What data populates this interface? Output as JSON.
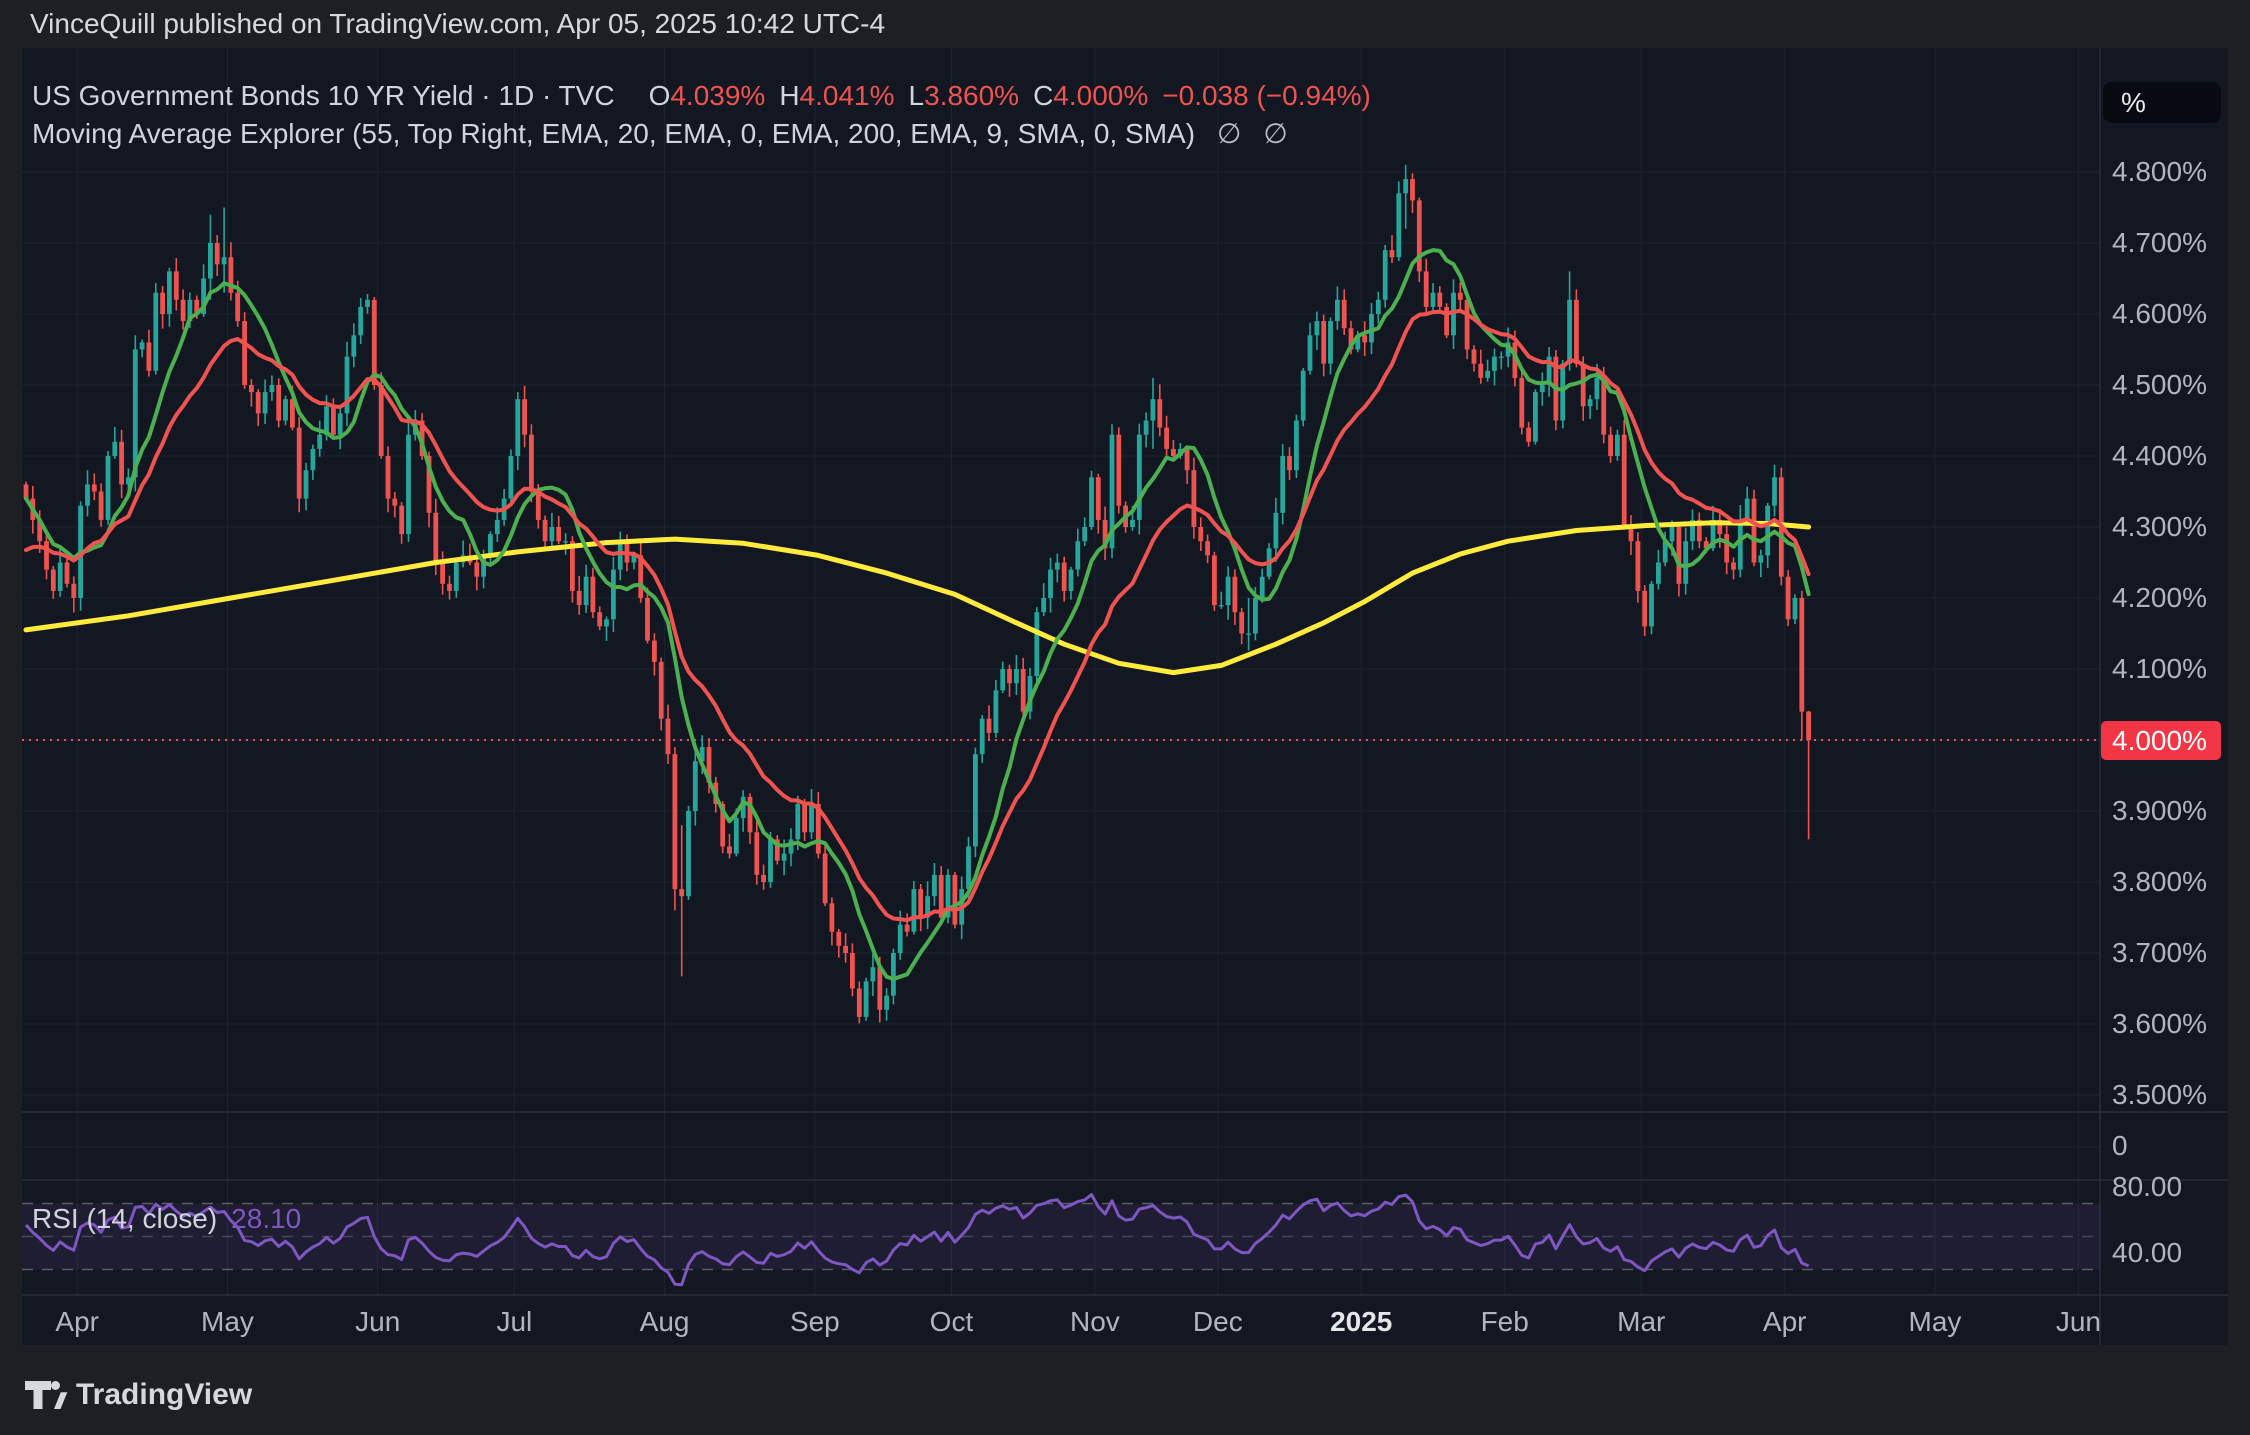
{
  "header": {
    "text": "VinceQuill published on TradingView.com, Apr 05, 2025 10:42 UTC-4"
  },
  "legend": {
    "symbol": "US Government Bonds 10 YR Yield · 1D · TVC",
    "ohlc": [
      {
        "k": "O",
        "v": "4.039%"
      },
      {
        "k": "H",
        "v": "4.041%"
      },
      {
        "k": "L",
        "v": "3.860%"
      },
      {
        "k": "C",
        "v": "4.000%"
      }
    ],
    "change": "−0.038 (−0.94%)",
    "indicator_text": "Moving Average Explorer (55, Top Right, EMA, 20, EMA, 0, EMA, 200, EMA, 9, SMA, 0, SMA)",
    "indicator_values": [
      "∅",
      "∅"
    ],
    "rsi_label": "RSI (14, close)",
    "rsi_value": "28.10"
  },
  "price_axis": {
    "unit_button": "%",
    "last_price_badge": {
      "text": "4.000%",
      "value": 4.0
    },
    "pane2_label": "0",
    "rsi_ticks": [
      {
        "label": "80.00",
        "value": 80
      },
      {
        "label": "40.00",
        "value": 40
      }
    ]
  },
  "footer": {
    "brand": "TradingView"
  },
  "colors": {
    "outer_bg": "#1e1f23",
    "chart_bg": "#131722",
    "grid": "#1d2331",
    "separator": "#2a2e39",
    "axis_text": "#b2b5be",
    "up": "#26a69a",
    "down": "#ef5350",
    "sma9": "#4caf50",
    "ema20": "#ef5350",
    "ema200": "#ffeb3b",
    "rsi_line": "#7e57c2",
    "rsi_band": "rgba(126,87,194,0.10)",
    "rsi_dash": "#9598a1",
    "badge_bg": "#f23645",
    "dotted_price_line": "#ef5350"
  },
  "chart_data": {
    "type": "candlestick",
    "title": "US Government Bonds 10 YR Yield, 1D, TVC",
    "x_unit": "daily bars, late Mar 2024 through Apr 04 2025",
    "ylabel": "yield %",
    "ylim": [
      3.476,
      4.965
    ],
    "grid": true,
    "y_ticks": [
      {
        "label": "4.800%",
        "value": 4.8
      },
      {
        "label": "4.700%",
        "value": 4.7
      },
      {
        "label": "4.600%",
        "value": 4.6
      },
      {
        "label": "4.500%",
        "value": 4.5
      },
      {
        "label": "4.400%",
        "value": 4.4
      },
      {
        "label": "4.300%",
        "value": 4.3
      },
      {
        "label": "4.200%",
        "value": 4.2
      },
      {
        "label": "4.100%",
        "value": 4.1
      },
      {
        "label": "4.000%",
        "value": 4.0
      },
      {
        "label": "3.900%",
        "value": 3.9
      },
      {
        "label": "3.800%",
        "value": 3.8
      },
      {
        "label": "3.700%",
        "value": 3.7
      },
      {
        "label": "3.600%",
        "value": 3.6
      },
      {
        "label": "3.500%",
        "value": 3.5
      }
    ],
    "months": [
      {
        "label": "Apr",
        "slot": 8
      },
      {
        "label": "May",
        "slot": 30
      },
      {
        "label": "Jun",
        "slot": 52
      },
      {
        "label": "Jul",
        "slot": 72
      },
      {
        "label": "Aug",
        "slot": 94
      },
      {
        "label": "Sep",
        "slot": 116
      },
      {
        "label": "Oct",
        "slot": 136
      },
      {
        "label": "Nov",
        "slot": 157
      },
      {
        "label": "Dec",
        "slot": 175
      },
      {
        "label": "2025",
        "slot": 196,
        "bold": true
      },
      {
        "label": "Feb",
        "slot": 217
      },
      {
        "label": "Mar",
        "slot": 237
      },
      {
        "label": "Apr",
        "slot": 258
      },
      {
        "label": "May",
        "slot": 280
      },
      {
        "label": "Jun",
        "slot": 301
      }
    ],
    "last_price": 4.0,
    "first_open": 4.36,
    "default_wick": 0.018,
    "closes": [
      4.34,
      4.31,
      4.28,
      4.24,
      4.21,
      4.25,
      4.22,
      4.2,
      4.33,
      4.36,
      4.35,
      4.31,
      4.4,
      4.42,
      4.36,
      4.37,
      4.55,
      4.56,
      4.52,
      4.63,
      4.6,
      4.66,
      4.62,
      4.59,
      4.62,
      4.6,
      4.65,
      4.7,
      4.67,
      4.68,
      4.63,
      4.59,
      4.5,
      4.49,
      4.46,
      4.49,
      4.5,
      4.45,
      4.48,
      4.44,
      4.34,
      4.38,
      4.41,
      4.43,
      4.47,
      4.43,
      4.46,
      4.54,
      4.57,
      4.61,
      4.62,
      4.5,
      4.4,
      4.34,
      4.33,
      4.29,
      4.43,
      4.45,
      4.4,
      4.32,
      4.25,
      4.22,
      4.21,
      4.25,
      4.26,
      4.25,
      4.23,
      4.26,
      4.29,
      4.31,
      4.34,
      4.4,
      4.48,
      4.43,
      4.35,
      4.31,
      4.28,
      4.3,
      4.28,
      4.28,
      4.21,
      4.19,
      4.23,
      4.18,
      4.16,
      4.17,
      4.24,
      4.28,
      4.25,
      4.26,
      4.2,
      4.14,
      4.11,
      4.03,
      3.98,
      3.79,
      3.78,
      3.9,
      3.97,
      3.99,
      3.94,
      3.91,
      3.85,
      3.84,
      3.89,
      3.92,
      3.87,
      3.81,
      3.8,
      3.86,
      3.83,
      3.84,
      3.86,
      3.91,
      3.87,
      3.91,
      3.84,
      3.77,
      3.73,
      3.71,
      3.7,
      3.65,
      3.61,
      3.66,
      3.68,
      3.62,
      3.64,
      3.7,
      3.74,
      3.73,
      3.79,
      3.75,
      3.78,
      3.81,
      3.75,
      3.81,
      3.74,
      3.79,
      3.85,
      3.98,
      4.03,
      4.01,
      4.07,
      4.1,
      4.08,
      4.1,
      4.04,
      4.09,
      4.18,
      4.2,
      4.24,
      4.25,
      4.21,
      4.24,
      4.28,
      4.3,
      4.37,
      4.31,
      4.27,
      4.43,
      4.33,
      4.3,
      4.31,
      4.43,
      4.45,
      4.48,
      4.44,
      4.41,
      4.4,
      4.41,
      4.38,
      4.3,
      4.28,
      4.26,
      4.19,
      4.19,
      4.23,
      4.18,
      4.15,
      4.15,
      4.2,
      4.23,
      4.27,
      4.32,
      4.4,
      4.38,
      4.45,
      4.52,
      4.57,
      4.59,
      4.53,
      4.59,
      4.62,
      4.58,
      4.55,
      4.57,
      4.56,
      4.6,
      4.62,
      4.69,
      4.68,
      4.77,
      4.79,
      4.76,
      4.66,
      4.61,
      4.63,
      4.61,
      4.57,
      4.63,
      4.62,
      4.55,
      4.53,
      4.51,
      4.52,
      4.54,
      4.54,
      4.56,
      4.51,
      4.44,
      4.42,
      4.49,
      4.5,
      4.54,
      4.45,
      4.53,
      4.62,
      4.53,
      4.47,
      4.48,
      4.51,
      4.43,
      4.4,
      4.43,
      4.3,
      4.28,
      4.21,
      4.16,
      4.22,
      4.25,
      4.28,
      4.3,
      4.22,
      4.28,
      4.31,
      4.28,
      4.27,
      4.31,
      4.29,
      4.25,
      4.24,
      4.31,
      4.34,
      4.25,
      4.26,
      4.33,
      4.37,
      4.23,
      4.17,
      4.2,
      4.04,
      4.0
    ],
    "wick_overrides": {
      "16": [
        4.57,
        4.35
      ],
      "27": [
        4.74,
        4.62
      ],
      "29": [
        4.75,
        4.63
      ],
      "72": [
        4.49,
        4.38
      ],
      "95": [
        3.99,
        3.76
      ],
      "96": [
        3.88,
        3.667
      ],
      "122": [
        3.66,
        3.601
      ],
      "165": [
        4.51,
        4.41
      ],
      "179": [
        4.2,
        4.126
      ],
      "202": [
        4.81,
        4.72
      ],
      "226": [
        4.66,
        4.52
      ],
      "260": [
        4.21,
        4.0
      ],
      "261": [
        4.041,
        3.86
      ]
    },
    "ma": {
      "sma_fast_period": 9,
      "ema_mid_period": 20,
      "ema_mid_seed": 4.26,
      "ema_slow_period": 200,
      "ma200_points": [
        [
          0,
          4.155
        ],
        [
          15,
          4.175
        ],
        [
          30,
          4.2
        ],
        [
          45,
          4.225
        ],
        [
          60,
          4.25
        ],
        [
          72,
          4.265
        ],
        [
          85,
          4.278
        ],
        [
          95,
          4.283
        ],
        [
          105,
          4.277
        ],
        [
          116,
          4.26
        ],
        [
          126,
          4.235
        ],
        [
          136,
          4.205
        ],
        [
          145,
          4.165
        ],
        [
          152,
          4.135
        ],
        [
          160,
          4.108
        ],
        [
          168,
          4.095
        ],
        [
          175,
          4.105
        ],
        [
          183,
          4.135
        ],
        [
          190,
          4.165
        ],
        [
          196,
          4.195
        ],
        [
          203,
          4.235
        ],
        [
          210,
          4.262
        ],
        [
          217,
          4.28
        ],
        [
          227,
          4.295
        ],
        [
          237,
          4.302
        ],
        [
          247,
          4.306
        ],
        [
          255,
          4.305
        ],
        [
          261,
          4.3
        ]
      ]
    },
    "rsi": {
      "period": 14,
      "seed_gain": 0.018,
      "seed_loss": 0.014,
      "upper_band": 70,
      "middle_band": 50,
      "lower_band": 30,
      "axis_hi": 80,
      "axis_lo": 40,
      "last_value": 28.1
    }
  }
}
